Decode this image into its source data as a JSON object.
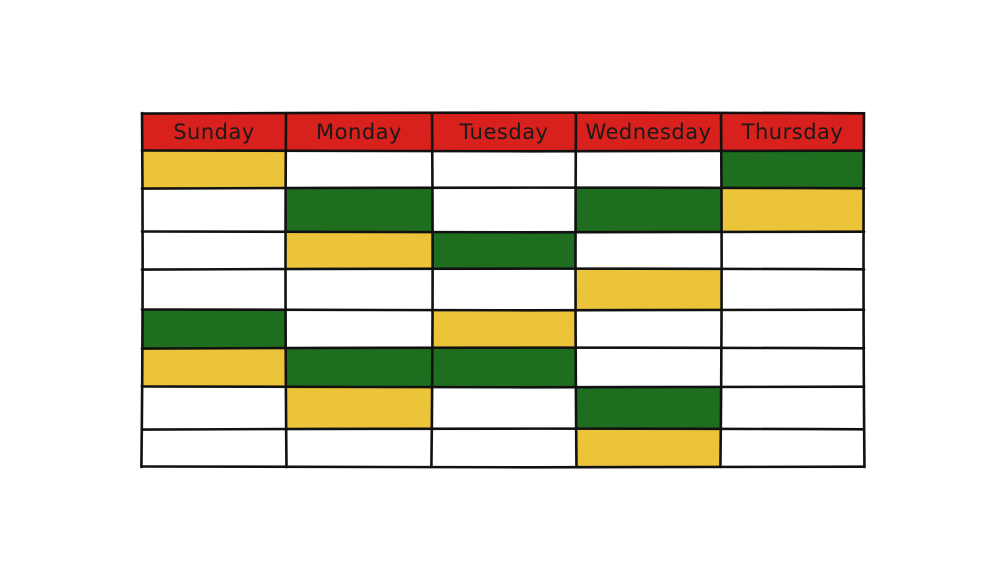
{
  "schedule": {
    "days": [
      "Sunday",
      "Monday",
      "Tuesday",
      "Wednesday",
      "Thursday"
    ],
    "slot_count": 8,
    "colors": {
      "header": "#d8201c",
      "green": "#1f6e1f",
      "yellow": "#ecc43a",
      "empty": "#ffffff"
    },
    "slots": [
      [
        "yellow",
        "empty",
        "empty",
        "empty",
        "green"
      ],
      [
        "empty",
        "green",
        "empty",
        "green",
        "yellow"
      ],
      [
        "empty",
        "yellow",
        "green",
        "empty",
        "empty"
      ],
      [
        "empty",
        "empty",
        "empty",
        "yellow",
        "empty"
      ],
      [
        "green",
        "empty",
        "yellow",
        "empty",
        "empty"
      ],
      [
        "yellow",
        "green",
        "green",
        "empty",
        "empty"
      ],
      [
        "empty",
        "yellow",
        "empty",
        "green",
        "empty"
      ],
      [
        "empty",
        "empty",
        "empty",
        "yellow",
        "empty"
      ]
    ]
  }
}
